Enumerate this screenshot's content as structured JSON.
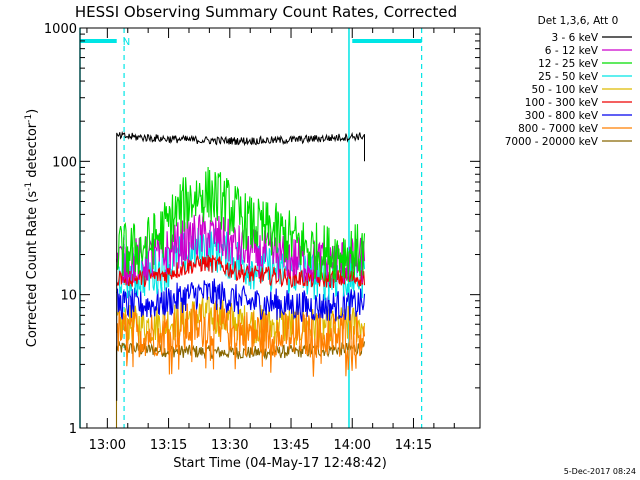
{
  "chart_data": {
    "type": "line",
    "title": "HESSI Observing Summary Count Rates, Corrected",
    "xlabel": "Start Time (04-May-17 12:48:42)",
    "ylabel_main": "Corrected Count Rate (s",
    "ylabel_sup1": "-1",
    "ylabel_mid": " detector",
    "ylabel_sup2": "-1",
    "ylabel_end": ")",
    "y_scale": "log",
    "ylim": [
      1,
      1000
    ],
    "xlim_minutes": [
      -6.7,
      91.3
    ],
    "x_ticks": [
      {
        "minute": 0,
        "label": "13:00"
      },
      {
        "minute": 15,
        "label": "13:15"
      },
      {
        "minute": 30,
        "label": "13:30"
      },
      {
        "minute": 45,
        "label": "13:45"
      },
      {
        "minute": 60,
        "label": "14:00"
      },
      {
        "minute": 75,
        "label": "14:15"
      }
    ],
    "y_ticks": [
      {
        "value": 1,
        "label": "1"
      },
      {
        "value": 10,
        "label": "10"
      },
      {
        "value": 100,
        "label": "100"
      },
      {
        "value": 1000,
        "label": "1000"
      }
    ],
    "legend_title": "Det 1,3,6, Att 0",
    "series": [
      {
        "name": "3 - 6 keV",
        "color": "#000000",
        "base": 155,
        "peak": 0,
        "noise": 0.03
      },
      {
        "name": "6 - 12 keV",
        "color": "#cc00cc",
        "base": 18,
        "peak": 12,
        "noise": 0.18
      },
      {
        "name": "12 - 25 keV",
        "color": "#00dd00",
        "base": 21,
        "peak": 40,
        "noise": 0.22
      },
      {
        "name": "25 - 50 keV",
        "color": "#00e5e5",
        "base": 14,
        "peak": 10,
        "noise": 0.18
      },
      {
        "name": "50 - 100 keV",
        "color": "#ddbb00",
        "base": 6,
        "peak": 1.5,
        "noise": 0.15
      },
      {
        "name": "100 - 300 keV",
        "color": "#ee0000",
        "base": 13.5,
        "peak": 5,
        "noise": 0.07
      },
      {
        "name": "300 - 800 keV",
        "color": "#0000ee",
        "base": 8.5,
        "peak": 2.5,
        "noise": 0.12
      },
      {
        "name": "800 - 7000 keV",
        "color": "#ff7f00",
        "base": 5.2,
        "peak": 1.2,
        "noise": 0.18
      },
      {
        "name": "7000 - 20000 keV",
        "color": "#886600",
        "base": 4,
        "peak": 0,
        "noise": 0.05
      }
    ],
    "data_span_minutes": [
      2.3,
      63.0
    ],
    "peak_minute": 24,
    "orbit_markers": {
      "solid_cyan_minutes": [
        -6.7,
        59.2
      ],
      "dashed_cyan_minutes": [
        4.1,
        77.0
      ],
      "night_bars": [
        {
          "from": -6.7,
          "to": 2.3
        },
        {
          "from": 60.0,
          "to": 77.0
        }
      ],
      "night_label": "N"
    }
  },
  "footer_date": "5-Dec-2017 08:24"
}
